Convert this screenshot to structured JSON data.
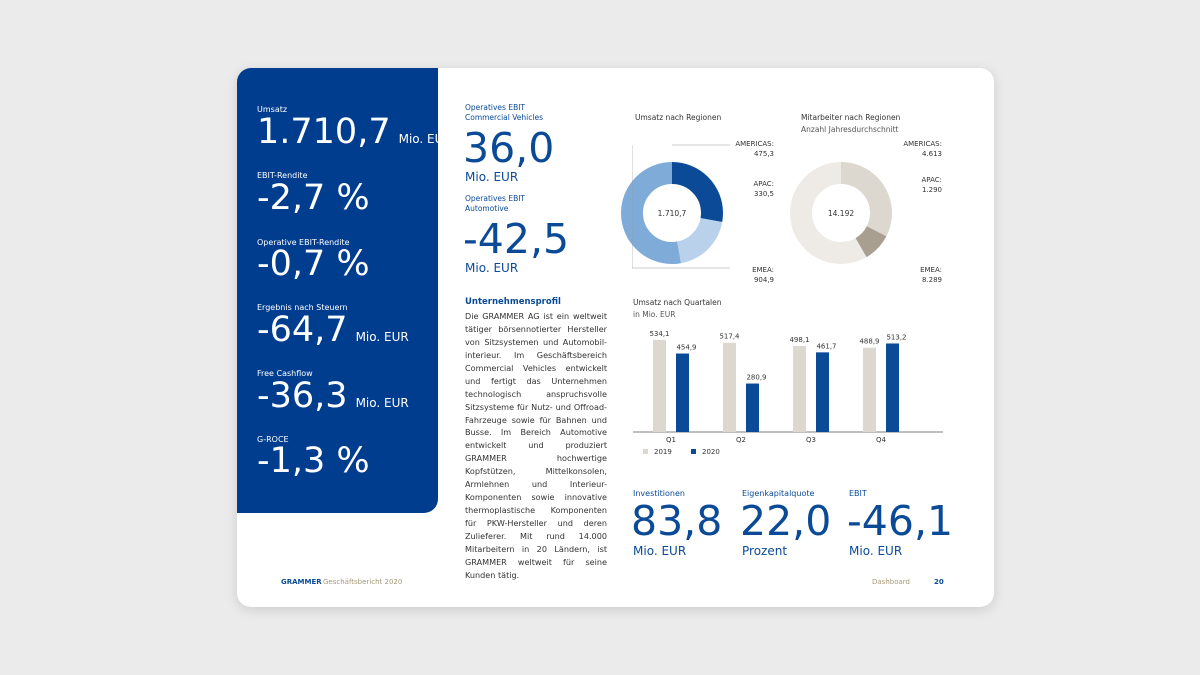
{
  "left_kpis": [
    {
      "label": "Umsatz",
      "value": "1.710,7",
      "unit": "Mio. EUR"
    },
    {
      "label": "EBIT-Rendite",
      "value": "-2,7 %",
      "unit": ""
    },
    {
      "label": "Operative EBIT-Rendite",
      "value": "-0,7 %",
      "unit": ""
    },
    {
      "label": "Ergebnis nach Steuern",
      "value": "-64,7",
      "unit": "Mio. EUR"
    },
    {
      "label": "Free Cashflow",
      "value": "-36,3",
      "unit": "Mio. EUR"
    },
    {
      "label": "G-ROCE",
      "value": "-1,3 %",
      "unit": ""
    }
  ],
  "ebit_cv": {
    "label_line1": "Operatives EBIT",
    "label_line2": "Commercial Vehicles",
    "value": "36,0",
    "unit": "Mio. EUR"
  },
  "ebit_auto": {
    "label_line1": "Operatives EBIT",
    "label_line2": "Automotive",
    "value": "-42,5",
    "unit": "Mio. EUR"
  },
  "profile": {
    "title": "Unternehmensprofil",
    "text": "Die GRAMMER AG ist ein weltweit tätiger börsennotierter Hersteller von Sitzsystemen und Automobil­interieur. Im Geschäftsbereich Commercial Vehicles entwickelt und fertigt das Unternehmen technologisch anspruchsvolle Sitzsysteme für Nutz- und Offroad-Fahrzeuge sowie für Bahnen und Busse. Im Bereich Automotive entwickelt und produziert GRAMMER hochwertige Kopfstützen, Mittelkonsolen, Armlehnen und Interieur-Komponenten sowie innovative thermoplastische Komponenten für PKW-Hersteller und deren Zulieferer. Mit rund 14.000 Mitarbeitern in 20 Ländern, ist GRAMMER weltweit für seine Kunden tätig."
  },
  "chart_data": [
    {
      "type": "pie",
      "title": "Umsatz nach Regionen",
      "center_label": "1.710,7",
      "slices": [
        {
          "name": "AMERICAS:",
          "value": 475.3,
          "label": "475,3",
          "color": "#0a4a97"
        },
        {
          "name": "APAC:",
          "value": 330.5,
          "label": "330,5",
          "color": "#b9d1ea"
        },
        {
          "name": "EMEA:",
          "value": 904.9,
          "label": "904,9",
          "color": "#7eabd8"
        }
      ]
    },
    {
      "type": "pie",
      "title": "Mitarbeiter nach Regionen",
      "subtitle": "Anzahl Jahresdurchschnitt",
      "center_label": "14.192",
      "slices": [
        {
          "name": "AMERICAS:",
          "value": 4613,
          "label": "4.613",
          "color": "#dcd7cf"
        },
        {
          "name": "APAC:",
          "value": 1290,
          "label": "1.290",
          "color": "#a89f91"
        },
        {
          "name": "EMEA:",
          "value": 8289,
          "label": "8.289",
          "color": "#eeebe7"
        }
      ]
    },
    {
      "type": "bar",
      "title": "Umsatz nach Quartalen",
      "subtitle": "in Mio. EUR",
      "categories": [
        "Q1",
        "Q2",
        "Q3",
        "Q4"
      ],
      "series": [
        {
          "name": "2019",
          "values": [
            534.1,
            517.4,
            498.1,
            488.9
          ],
          "labels": [
            "534,1",
            "517,4",
            "498,1",
            "488,9"
          ],
          "color": "#dcd7cf"
        },
        {
          "name": "2020",
          "values": [
            454.9,
            280.9,
            461.7,
            513.2
          ],
          "labels": [
            "454,9",
            "280,9",
            "461,7",
            "513,2"
          ],
          "color": "#0a4a97"
        }
      ],
      "ylim": [
        0,
        560
      ]
    }
  ],
  "bottom_kpis": [
    {
      "label": "Investitionen",
      "value": "83,8",
      "unit": "Mio. EUR"
    },
    {
      "label": "Eigenkapitalquote",
      "value": "22,0",
      "unit": "Prozent"
    },
    {
      "label": "EBIT",
      "value": "-46,1",
      "unit": "Mio. EUR"
    }
  ],
  "footer": {
    "brand": "GRAMMER",
    "report": "Geschäftsbericht 2020",
    "section": "Dashboard",
    "page": "20"
  },
  "colors": {
    "brand_blue": "#003d8f",
    "text_blue": "#0a4a97"
  }
}
